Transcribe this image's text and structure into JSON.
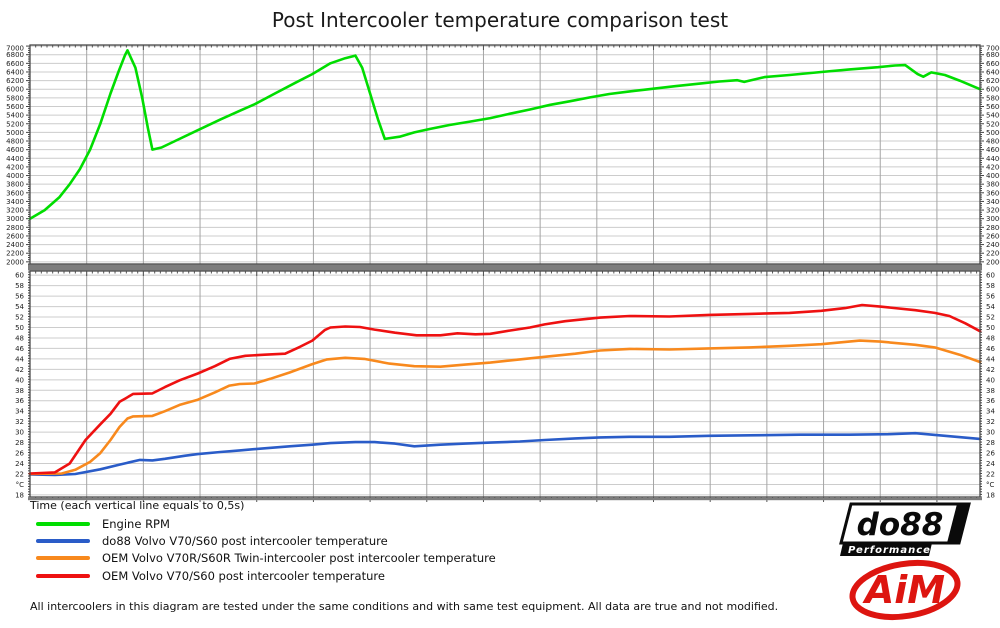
{
  "title": "Post Intercooler temperature comparison test",
  "x_axis_note": "Time (each vertical line equals to 0,5s)",
  "footer_note": "All intercoolers in this diagram are tested under the same conditions and with same test equipment. All data are true and not modified.",
  "colors": {
    "rpm_green": "#00dd00",
    "do88_blue": "#2a5cc8",
    "oem_twin_orange": "#f8891d",
    "oem_red": "#ee1111",
    "grid_horizontal": "#cccccc",
    "grid_vertical": "#a5a5a5",
    "panel_border": "#4a4a4a",
    "panel_divider": "#7d7d7d",
    "aim_red": "#dd1510",
    "do88_black": "#0a0a0a"
  },
  "legend": {
    "items": [
      {
        "label": "Engine RPM",
        "color": "#00dd00"
      },
      {
        "label": "do88 Volvo V70/S60 post intercooler temperature",
        "color": "#2a5cc8"
      },
      {
        "label": "OEM Volvo V70R/S60R Twin-intercooler post intercooler temperature",
        "color": "#f8891d"
      },
      {
        "label": "OEM Volvo V70/S60 post intercooler temperature",
        "color": "#ee1111"
      }
    ]
  },
  "logos": {
    "do88": {
      "text": "do88",
      "subtext": "Performance"
    },
    "aim": {
      "text": "AiM"
    }
  },
  "chart_data": {
    "type": "line",
    "title": "Post Intercooler temperature comparison test",
    "x_unit": "seconds",
    "x_gridline_seconds": 0.5,
    "x_total_seconds": 8.38,
    "grid": true,
    "legend_position": "bottom-left",
    "panels": [
      {
        "name": "engine-rpm",
        "ylabel": "RPM",
        "ylim": [
          2000,
          7000
        ],
        "ytick_step": 200,
        "series": [
          {
            "name": "Engine RPM",
            "color": "#00dd00",
            "points": [
              [
                0.0,
                3000
              ],
              [
                0.13,
                3200
              ],
              [
                0.26,
                3500
              ],
              [
                0.35,
                3800
              ],
              [
                0.44,
                4150
              ],
              [
                0.53,
                4600
              ],
              [
                0.62,
                5200
              ],
              [
                0.71,
                5900
              ],
              [
                0.78,
                6400
              ],
              [
                0.84,
                6800
              ],
              [
                0.86,
                6900
              ],
              [
                0.93,
                6500
              ],
              [
                0.99,
                5800
              ],
              [
                1.04,
                5100
              ],
              [
                1.08,
                4600
              ],
              [
                1.16,
                4650
              ],
              [
                1.28,
                4800
              ],
              [
                1.48,
                5050
              ],
              [
                1.68,
                5300
              ],
              [
                1.85,
                5500
              ],
              [
                1.98,
                5650
              ],
              [
                2.16,
                5900
              ],
              [
                2.34,
                6150
              ],
              [
                2.49,
                6350
              ],
              [
                2.65,
                6600
              ],
              [
                2.78,
                6720
              ],
              [
                2.87,
                6780
              ],
              [
                2.93,
                6500
              ],
              [
                3.0,
                5900
              ],
              [
                3.07,
                5300
              ],
              [
                3.13,
                4850
              ],
              [
                3.26,
                4900
              ],
              [
                3.39,
                5000
              ],
              [
                3.53,
                5080
              ],
              [
                3.7,
                5170
              ],
              [
                3.88,
                5250
              ],
              [
                4.06,
                5330
              ],
              [
                4.23,
                5430
              ],
              [
                4.41,
                5530
              ],
              [
                4.59,
                5640
              ],
              [
                4.76,
                5720
              ],
              [
                4.94,
                5810
              ],
              [
                5.11,
                5890
              ],
              [
                5.29,
                5950
              ],
              [
                5.49,
                6010
              ],
              [
                5.69,
                6070
              ],
              [
                5.91,
                6130
              ],
              [
                6.08,
                6180
              ],
              [
                6.24,
                6210
              ],
              [
                6.3,
                6170
              ],
              [
                6.48,
                6280
              ],
              [
                6.7,
                6330
              ],
              [
                6.98,
                6400
              ],
              [
                7.23,
                6460
              ],
              [
                7.48,
                6510
              ],
              [
                7.63,
                6550
              ],
              [
                7.72,
                6560
              ],
              [
                7.83,
                6350
              ],
              [
                7.88,
                6290
              ],
              [
                7.95,
                6390
              ],
              [
                8.07,
                6330
              ],
              [
                8.2,
                6200
              ],
              [
                8.38,
                6000
              ]
            ]
          }
        ]
      },
      {
        "name": "post-intercooler-temperature",
        "ylabel": "°C",
        "ylim": [
          18,
          60
        ],
        "ytick_step": 2,
        "series": [
          {
            "name": "do88 Volvo V70/S60 post intercooler temperature",
            "color": "#2a5cc8",
            "points": [
              [
                0.0,
                21.9
              ],
              [
                0.22,
                21.8
              ],
              [
                0.4,
                22.0
              ],
              [
                0.62,
                22.9
              ],
              [
                0.79,
                23.8
              ],
              [
                0.97,
                24.7
              ],
              [
                1.08,
                24.6
              ],
              [
                1.19,
                24.9
              ],
              [
                1.37,
                25.5
              ],
              [
                1.48,
                25.8
              ],
              [
                1.68,
                26.2
              ],
              [
                1.85,
                26.5
              ],
              [
                2.07,
                26.9
              ],
              [
                2.29,
                27.3
              ],
              [
                2.49,
                27.6
              ],
              [
                2.65,
                27.9
              ],
              [
                2.87,
                28.1
              ],
              [
                3.04,
                28.1
              ],
              [
                3.22,
                27.8
              ],
              [
                3.39,
                27.3
              ],
              [
                3.62,
                27.6
              ],
              [
                3.84,
                27.8
              ],
              [
                4.06,
                28.0
              ],
              [
                4.32,
                28.2
              ],
              [
                4.54,
                28.5
              ],
              [
                4.81,
                28.8
              ],
              [
                5.03,
                29.0
              ],
              [
                5.29,
                29.1
              ],
              [
                5.64,
                29.1
              ],
              [
                5.99,
                29.3
              ],
              [
                6.35,
                29.4
              ],
              [
                6.79,
                29.5
              ],
              [
                7.23,
                29.5
              ],
              [
                7.57,
                29.6
              ],
              [
                7.81,
                29.8
              ],
              [
                8.07,
                29.3
              ],
              [
                8.38,
                28.7
              ]
            ]
          },
          {
            "name": "OEM Volvo V70R/S60R Twin-intercooler post intercooler temperature",
            "color": "#f8891d",
            "points": [
              [
                0.0,
                22.0
              ],
              [
                0.28,
                22.1
              ],
              [
                0.4,
                22.8
              ],
              [
                0.53,
                24.3
              ],
              [
                0.62,
                26.0
              ],
              [
                0.71,
                28.5
              ],
              [
                0.79,
                31.0
              ],
              [
                0.86,
                32.6
              ],
              [
                0.91,
                33.0
              ],
              [
                1.08,
                33.1
              ],
              [
                1.19,
                34.0
              ],
              [
                1.32,
                35.2
              ],
              [
                1.48,
                36.2
              ],
              [
                1.63,
                37.6
              ],
              [
                1.76,
                38.9
              ],
              [
                1.85,
                39.2
              ],
              [
                1.98,
                39.3
              ],
              [
                2.12,
                40.2
              ],
              [
                2.29,
                41.4
              ],
              [
                2.49,
                43.0
              ],
              [
                2.62,
                43.9
              ],
              [
                2.78,
                44.2
              ],
              [
                2.95,
                44.0
              ],
              [
                3.17,
                43.1
              ],
              [
                3.39,
                42.6
              ],
              [
                3.62,
                42.5
              ],
              [
                3.84,
                42.9
              ],
              [
                4.06,
                43.3
              ],
              [
                4.32,
                43.9
              ],
              [
                4.54,
                44.4
              ],
              [
                4.81,
                45.0
              ],
              [
                5.03,
                45.6
              ],
              [
                5.29,
                45.9
              ],
              [
                5.64,
                45.8
              ],
              [
                5.99,
                46.0
              ],
              [
                6.35,
                46.2
              ],
              [
                6.7,
                46.5
              ],
              [
                6.98,
                46.8
              ],
              [
                7.32,
                47.5
              ],
              [
                7.5,
                47.3
              ],
              [
                7.81,
                46.7
              ],
              [
                7.98,
                46.2
              ],
              [
                8.2,
                44.8
              ],
              [
                8.38,
                43.4
              ]
            ]
          },
          {
            "name": "OEM Volvo V70/S60 post intercooler temperature",
            "color": "#ee1111",
            "points": [
              [
                0.0,
                22.1
              ],
              [
                0.22,
                22.3
              ],
              [
                0.35,
                24.0
              ],
              [
                0.49,
                28.5
              ],
              [
                0.62,
                31.5
              ],
              [
                0.71,
                33.5
              ],
              [
                0.79,
                35.8
              ],
              [
                0.84,
                36.4
              ],
              [
                0.91,
                37.3
              ],
              [
                1.08,
                37.4
              ],
              [
                1.19,
                38.6
              ],
              [
                1.32,
                39.9
              ],
              [
                1.48,
                41.2
              ],
              [
                1.63,
                42.6
              ],
              [
                1.76,
                44.0
              ],
              [
                1.9,
                44.6
              ],
              [
                2.07,
                44.8
              ],
              [
                2.25,
                45.0
              ],
              [
                2.38,
                46.3
              ],
              [
                2.49,
                47.5
              ],
              [
                2.6,
                49.5
              ],
              [
                2.65,
                50.0
              ],
              [
                2.78,
                50.2
              ],
              [
                2.91,
                50.1
              ],
              [
                3.04,
                49.6
              ],
              [
                3.22,
                49.0
              ],
              [
                3.41,
                48.5
              ],
              [
                3.62,
                48.5
              ],
              [
                3.77,
                48.9
              ],
              [
                3.93,
                48.7
              ],
              [
                4.06,
                48.8
              ],
              [
                4.23,
                49.4
              ],
              [
                4.41,
                50.0
              ],
              [
                4.54,
                50.6
              ],
              [
                4.72,
                51.2
              ],
              [
                4.9,
                51.6
              ],
              [
                5.03,
                51.9
              ],
              [
                5.29,
                52.2
              ],
              [
                5.64,
                52.1
              ],
              [
                5.99,
                52.4
              ],
              [
                6.35,
                52.6
              ],
              [
                6.7,
                52.8
              ],
              [
                6.98,
                53.2
              ],
              [
                7.19,
                53.7
              ],
              [
                7.34,
                54.3
              ],
              [
                7.5,
                54.0
              ],
              [
                7.81,
                53.3
              ],
              [
                7.98,
                52.8
              ],
              [
                8.11,
                52.2
              ],
              [
                8.25,
                50.8
              ],
              [
                8.38,
                49.3
              ]
            ]
          }
        ]
      }
    ]
  }
}
